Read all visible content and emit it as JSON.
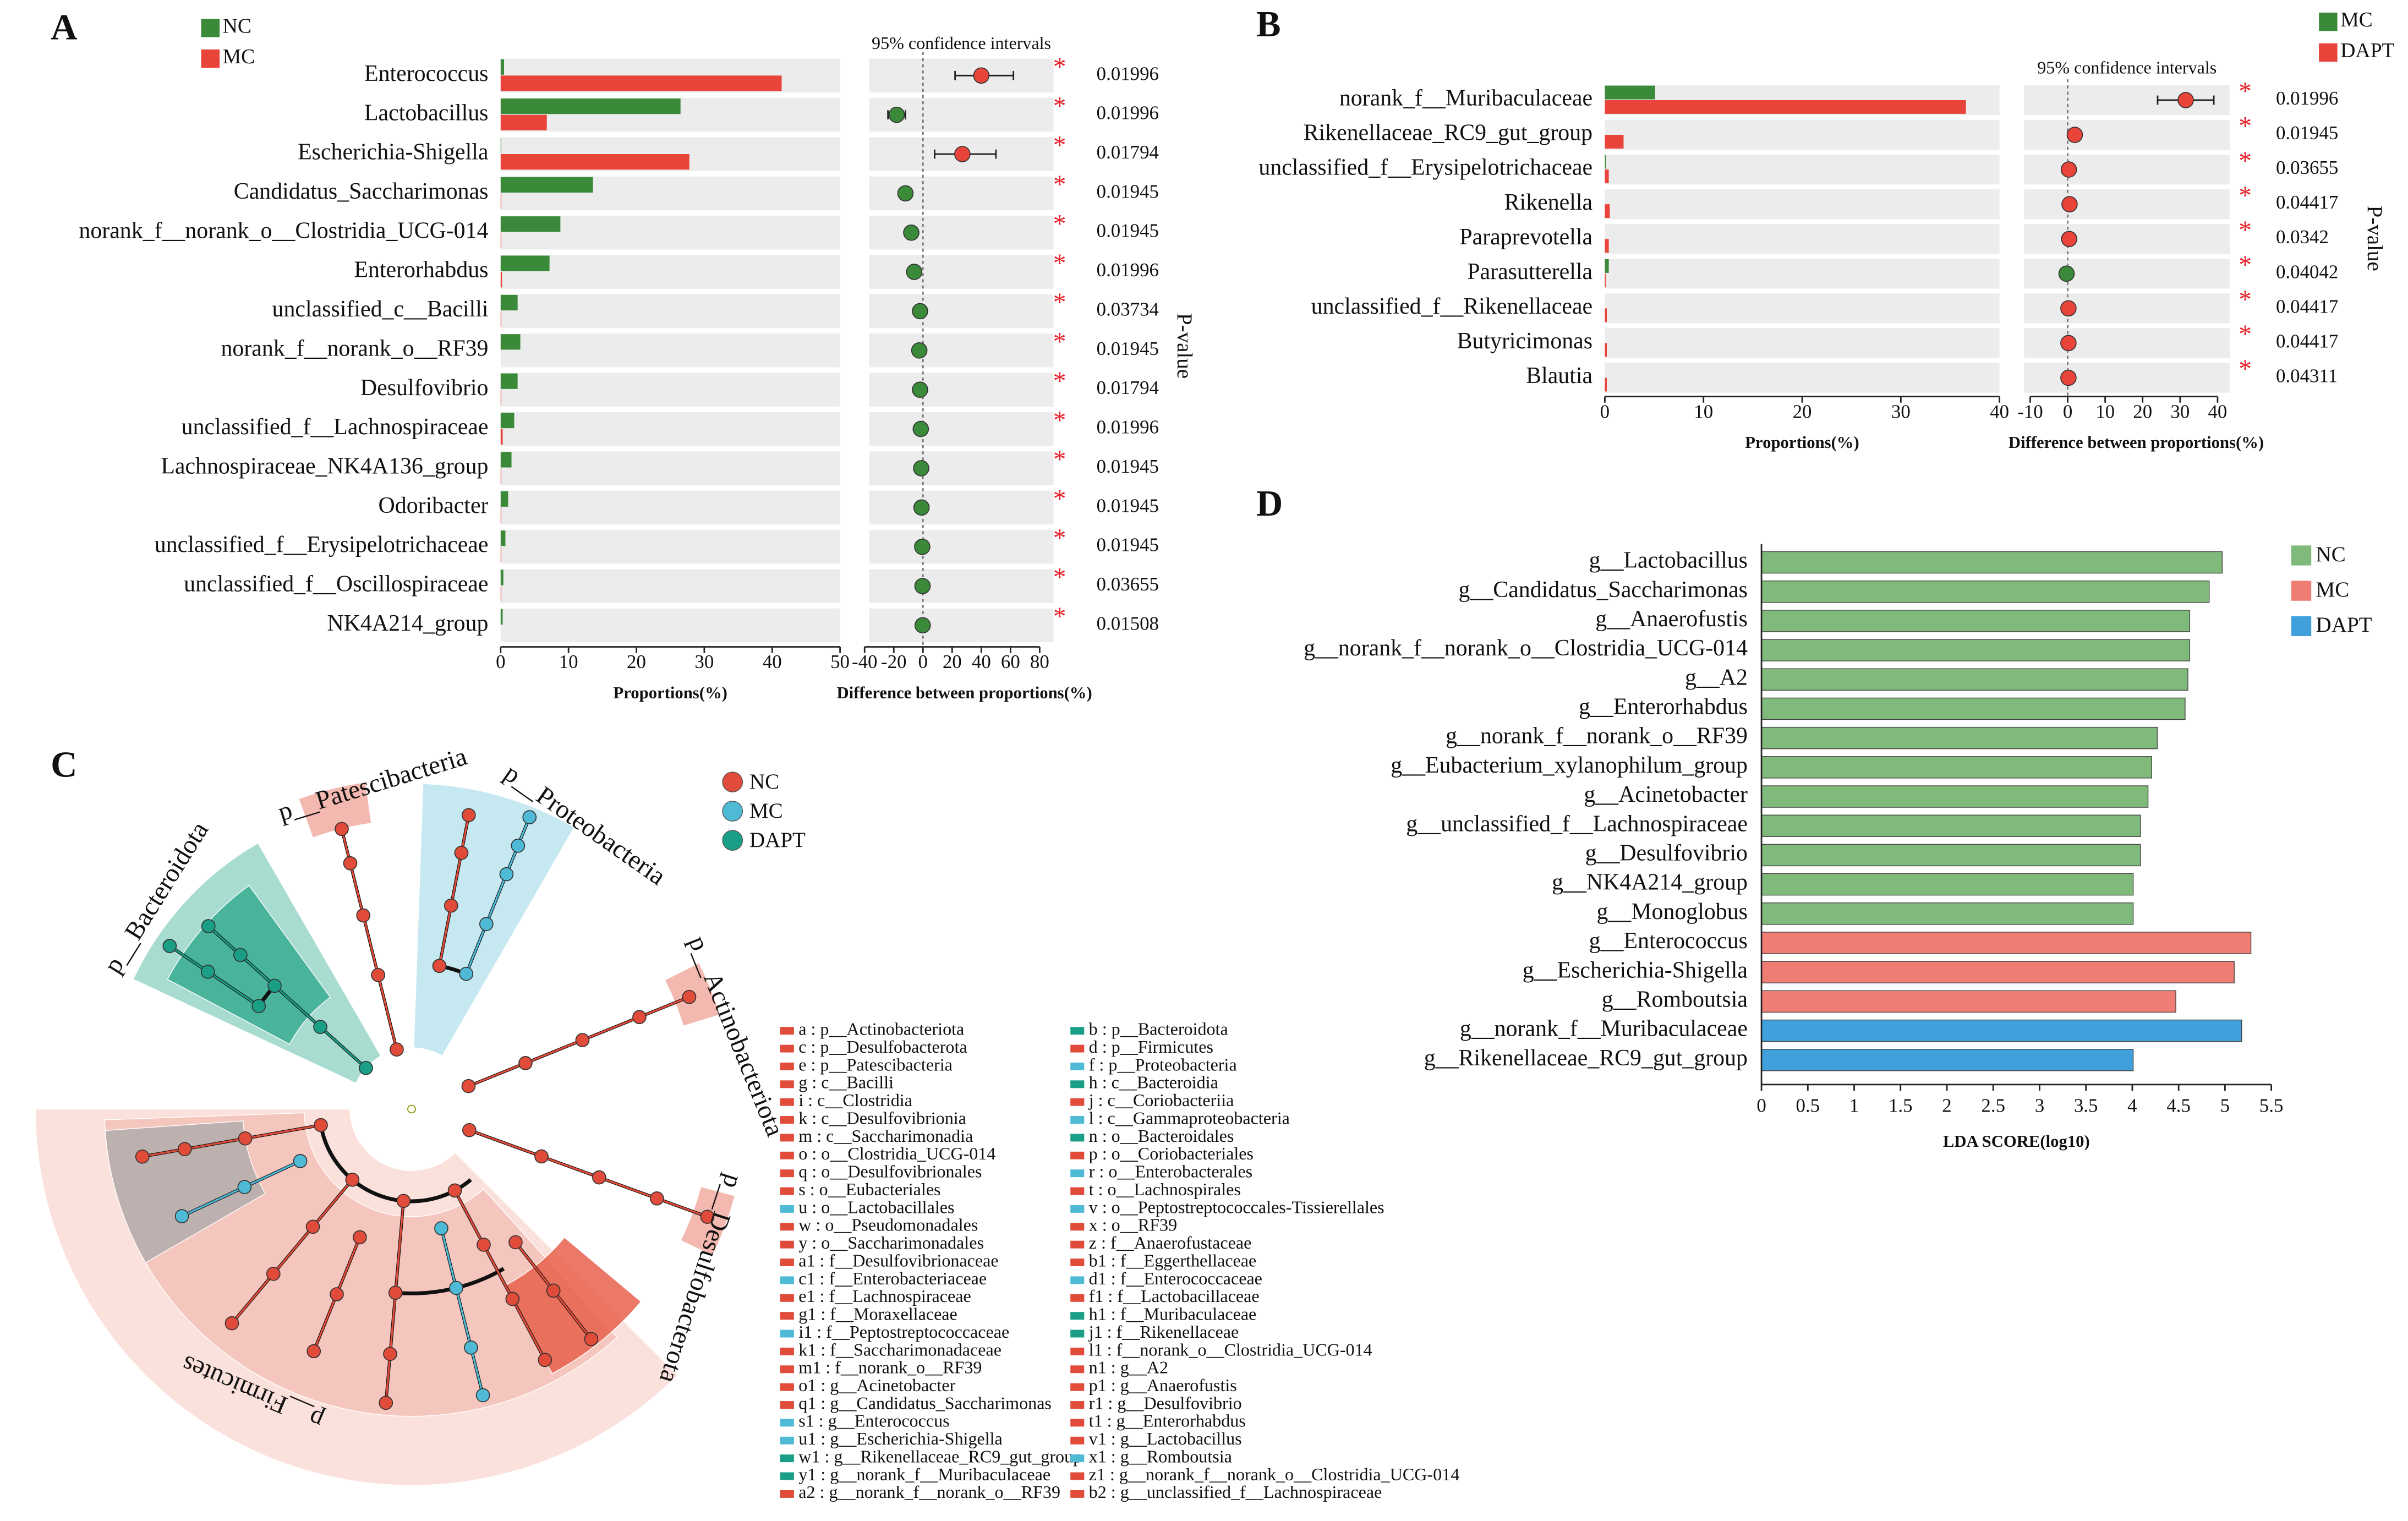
{
  "chart_data": [
    {
      "type": "difference",
      "label": "A",
      "categories": [
        "Enterococcus",
        "Lactobacillus",
        "Escherichia-Shigella",
        "Candidatus_Saccharimonas",
        "norank_f__norank_o__Clostridia_UCG-014",
        "Enterorhabdus",
        "unclassified_c__Bacilli",
        "norank_f__norank_o__RF39",
        "Desulfovibrio",
        "unclassified_f__Lachnospiraceae",
        "Lachnospiraceae_NK4A136_group",
        "Odoribacter",
        "unclassified_f__Erysipelotrichaceae",
        "unclassified_f__Oscillospiraceae",
        "NK4A214_group"
      ],
      "series": [
        {
          "name": "NC",
          "color": "#3a8a3a",
          "values": [
            0.5,
            26.5,
            0.1,
            13.6,
            8.8,
            7.2,
            2.5,
            2.9,
            2.5,
            2.0,
            1.6,
            1.1,
            0.7,
            0.4,
            0.3
          ]
        },
        {
          "name": "MC",
          "color": "#e8443a",
          "values": [
            41.4,
            6.8,
            27.8,
            0.1,
            0.1,
            0.2,
            0.1,
            0,
            0.1,
            0.3,
            0.1,
            0.1,
            0.1,
            0.1,
            0
          ]
        }
      ],
      "xlim": [
        0,
        50
      ],
      "xticks": [
        0,
        10,
        20,
        30,
        40,
        50
      ],
      "xlabel": "Proportions(%)",
      "diff": {
        "title": "95% confidence intervals",
        "xlabel": "Difference between proportions(%)",
        "xlim": [
          -40,
          80
        ],
        "xticks": [
          -40,
          -20,
          0,
          20,
          40,
          60,
          80
        ],
        "values": [
          40,
          -18,
          27,
          -12,
          -8,
          -6,
          -2,
          -2.5,
          -2,
          -1.5,
          -1.2,
          -1,
          -0.5,
          -0.3,
          -0.2
        ],
        "ci_low": [
          22,
          -24,
          8,
          -16,
          -10,
          -8,
          -3,
          -3.5,
          -3,
          -2.5,
          -2,
          -1.6,
          -0.8,
          -0.5,
          -0.4
        ],
        "ci_high": [
          62,
          -12,
          50,
          -8,
          -6,
          -4,
          -1,
          -1.5,
          -1,
          -0.5,
          -0.4,
          -0.4,
          -0.2,
          -0.1,
          0
        ]
      },
      "significance": [
        "*",
        "*",
        "*",
        "*",
        "*",
        "*",
        "*",
        "*",
        "*",
        "*",
        "*",
        "*",
        "*",
        "*",
        "*"
      ],
      "pvalue_label": "P-value",
      "pvalues": [
        0.01996,
        0.01996,
        0.01794,
        0.01945,
        0.01945,
        0.01996,
        0.03734,
        0.01945,
        0.01794,
        0.01996,
        0.01945,
        0.01945,
        0.01945,
        0.03655,
        0.01508
      ]
    },
    {
      "type": "difference",
      "label": "B",
      "categories": [
        "norank_f__Muribaculaceae",
        "Rikenellaceae_RC9_gut_group",
        "unclassified_f__Erysipelotrichaceae",
        "Rikenella",
        "Paraprevotella",
        "Parasutterella",
        "unclassified_f__Rikenellaceae",
        "Butyricimonas",
        "Blautia"
      ],
      "series": [
        {
          "name": "MC",
          "color": "#3a8a3a",
          "values": [
            5.1,
            0,
            0.1,
            0,
            0,
            0.4,
            0,
            0,
            0
          ]
        },
        {
          "name": "DAPT",
          "color": "#e8443a",
          "values": [
            36.6,
            1.9,
            0.4,
            0.5,
            0.4,
            0.1,
            0.2,
            0.2,
            0.2
          ]
        }
      ],
      "xlim": [
        0,
        40
      ],
      "xticks": [
        0,
        10,
        20,
        30,
        40
      ],
      "xlabel": "Proportions(%)",
      "diff": {
        "title": "95% confidence intervals",
        "xlabel": "Difference between proportions(%)",
        "xlim": [
          -10,
          40
        ],
        "xticks": [
          -10,
          0,
          10,
          20,
          30,
          40
        ],
        "values": [
          31.5,
          1.9,
          0.3,
          0.5,
          0.4,
          -0.3,
          0.2,
          0.2,
          0.2
        ],
        "ci_low": [
          24,
          1.2,
          0.1,
          0.3,
          0.2,
          -0.5,
          0.1,
          0.1,
          0.1
        ],
        "ci_high": [
          39,
          2.6,
          0.5,
          0.7,
          0.6,
          -0.1,
          0.3,
          0.3,
          0.3
        ]
      },
      "significance": [
        "*",
        "*",
        "*",
        "*",
        "*",
        "*",
        "*",
        "*",
        "*"
      ],
      "pvalue_label": "P-value",
      "pvalues": [
        0.01996,
        0.01945,
        0.03655,
        0.04417,
        0.0342,
        0.04042,
        0.04417,
        0.04417,
        0.04311
      ]
    },
    {
      "type": "cladogram",
      "label": "C",
      "clades": [
        "p__Patescibacteria",
        "p__Proteobacteria",
        "p__Actinobacteriota",
        "p__Desulfobacterota",
        "p__Firmicutes",
        "p__Bacteroidota"
      ],
      "series": [
        {
          "name": "NC",
          "color": "#e04b3a"
        },
        {
          "name": "MC",
          "color": "#4fbad6"
        },
        {
          "name": "DAPT",
          "color": "#1b9e86"
        }
      ],
      "key_columns": [
        [
          {
            "label": "a : p__Actinobacteriota",
            "color": "#e04b3a"
          },
          {
            "label": "c : p__Desulfobacterota",
            "color": "#e04b3a"
          },
          {
            "label": "e : p__Patescibacteria",
            "color": "#e04b3a"
          },
          {
            "label": "g : c__Bacilli",
            "color": "#e04b3a"
          },
          {
            "label": "i : c__Clostridia",
            "color": "#e04b3a"
          },
          {
            "label": "k : c__Desulfovibrionia",
            "color": "#e04b3a"
          },
          {
            "label": "m : c__Saccharimonadia",
            "color": "#e04b3a"
          },
          {
            "label": "o : o__Clostridia_UCG-014",
            "color": "#e04b3a"
          },
          {
            "label": "q : o__Desulfovibrionales",
            "color": "#e04b3a"
          },
          {
            "label": "s : o__Eubacteriales",
            "color": "#e04b3a"
          },
          {
            "label": "u : o__Lactobacillales",
            "color": "#4fbad6"
          },
          {
            "label": "w : o__Pseudomonadales",
            "color": "#e04b3a"
          },
          {
            "label": "y : o__Saccharimonadales",
            "color": "#e04b3a"
          },
          {
            "label": "a1 : f__Desulfovibrionaceae",
            "color": "#e04b3a"
          },
          {
            "label": "c1 : f__Enterobacteriaceae",
            "color": "#4fbad6"
          },
          {
            "label": "e1 : f__Lachnospiraceae",
            "color": "#e04b3a"
          },
          {
            "label": "g1 : f__Moraxellaceae",
            "color": "#e04b3a"
          },
          {
            "label": "i1 : f__Peptostreptococcaceae",
            "color": "#4fbad6"
          },
          {
            "label": "k1 : f__Saccharimonadaceae",
            "color": "#e04b3a"
          },
          {
            "label": "m1 : f__norank_o__RF39",
            "color": "#e04b3a"
          },
          {
            "label": "o1 : g__Acinetobacter",
            "color": "#e04b3a"
          },
          {
            "label": "q1 : g__Candidatus_Saccharimonas",
            "color": "#e04b3a"
          },
          {
            "label": "s1 : g__Enterococcus",
            "color": "#4fbad6"
          },
          {
            "label": "u1 : g__Escherichia-Shigella",
            "color": "#4fbad6"
          },
          {
            "label": "w1 : g__Rikenellaceae_RC9_gut_group",
            "color": "#1b9e86"
          },
          {
            "label": "y1 : g__norank_f__Muribaculaceae",
            "color": "#1b9e86"
          },
          {
            "label": "a2 : g__norank_f__norank_o__RF39",
            "color": "#e04b3a"
          }
        ],
        [
          {
            "label": "b : p__Bacteroidota",
            "color": "#1b9e86"
          },
          {
            "label": "d : p__Firmicutes",
            "color": "#e04b3a"
          },
          {
            "label": "f : p__Proteobacteria",
            "color": "#4fbad6"
          },
          {
            "label": "h : c__Bacteroidia",
            "color": "#1b9e86"
          },
          {
            "label": "j : c__Coriobacteriia",
            "color": "#e04b3a"
          },
          {
            "label": "l : c__Gammaproteobacteria",
            "color": "#4fbad6"
          },
          {
            "label": "n : o__Bacteroidales",
            "color": "#1b9e86"
          },
          {
            "label": "p : o__Coriobacteriales",
            "color": "#e04b3a"
          },
          {
            "label": "r : o__Enterobacterales",
            "color": "#4fbad6"
          },
          {
            "label": "t : o__Lachnospirales",
            "color": "#e04b3a"
          },
          {
            "label": "v : o__Peptostreptococcales-Tissierellales",
            "color": "#4fbad6"
          },
          {
            "label": "x : o__RF39",
            "color": "#e04b3a"
          },
          {
            "label": "z : f__Anaerofustaceae",
            "color": "#e04b3a"
          },
          {
            "label": "b1 : f__Eggerthellaceae",
            "color": "#e04b3a"
          },
          {
            "label": "d1 : f__Enterococcaceae",
            "color": "#4fbad6"
          },
          {
            "label": "f1 : f__Lactobacillaceae",
            "color": "#e04b3a"
          },
          {
            "label": "h1 : f__Muribaculaceae",
            "color": "#1b9e86"
          },
          {
            "label": "j1 : f__Rikenellaceae",
            "color": "#1b9e86"
          },
          {
            "label": "l1 : f__norank_o__Clostridia_UCG-014",
            "color": "#e04b3a"
          },
          {
            "label": "n1 : g__A2",
            "color": "#e04b3a"
          },
          {
            "label": "p1 : g__Anaerofustis",
            "color": "#e04b3a"
          },
          {
            "label": "r1 : g__Desulfovibrio",
            "color": "#e04b3a"
          },
          {
            "label": "t1 : g__Enterorhabdus",
            "color": "#e04b3a"
          },
          {
            "label": "v1 : g__Lactobacillus",
            "color": "#e04b3a"
          },
          {
            "label": "x1 : g__Romboutsia",
            "color": "#4fbad6"
          },
          {
            "label": "z1 : g__norank_f__norank_o__Clostridia_UCG-014",
            "color": "#e04b3a"
          },
          {
            "label": "b2 : g__unclassified_f__Lachnospiraceae",
            "color": "#e04b3a"
          }
        ]
      ]
    },
    {
      "type": "bar",
      "label": "D",
      "orientation": "horizontal",
      "categories": [
        "g__Lactobacillus",
        "g__Candidatus_Saccharimonas",
        "g__Anaerofustis",
        "g__norank_f__norank_o__Clostridia_UCG-014",
        "g__A2",
        "g__Enterorhabdus",
        "g__norank_f__norank_o__RF39",
        "g__Eubacterium_xylanophilum_group",
        "g__Acinetobacter",
        "g__unclassified_f__Lachnospiraceae",
        "g__Desulfovibrio",
        "g__NK4A214_group",
        "g__Monoglobus",
        "g__Enterococcus",
        "g__Escherichia-Shigella",
        "g__Romboutsia",
        "g__norank_f__Muribaculaceae",
        "g__Rikenellaceae_RC9_gut_group"
      ],
      "series": [
        {
          "name": "NC",
          "color": "#7fba7a",
          "values": [
            4.97,
            4.83,
            4.62,
            4.62,
            4.6,
            4.57,
            4.27,
            4.21,
            4.17,
            4.09,
            4.09,
            4.01,
            4.01,
            null,
            null,
            null,
            null,
            null
          ]
        },
        {
          "name": "MC",
          "color": "#f07d74",
          "values": [
            null,
            null,
            null,
            null,
            null,
            null,
            null,
            null,
            null,
            null,
            null,
            null,
            null,
            5.28,
            5.1,
            4.47,
            null,
            null
          ]
        },
        {
          "name": "DAPT",
          "color": "#3fa0dc",
          "values": [
            null,
            null,
            null,
            null,
            null,
            null,
            null,
            null,
            null,
            null,
            null,
            null,
            null,
            null,
            null,
            null,
            5.18,
            4.01
          ]
        }
      ],
      "xlim": [
        0,
        5.5
      ],
      "xticks": [
        0,
        0.5,
        1,
        1.5,
        2,
        2.5,
        3,
        3.5,
        4,
        4.5,
        5,
        5.5
      ],
      "xlabel": "LDA SCORE(log10)"
    }
  ]
}
